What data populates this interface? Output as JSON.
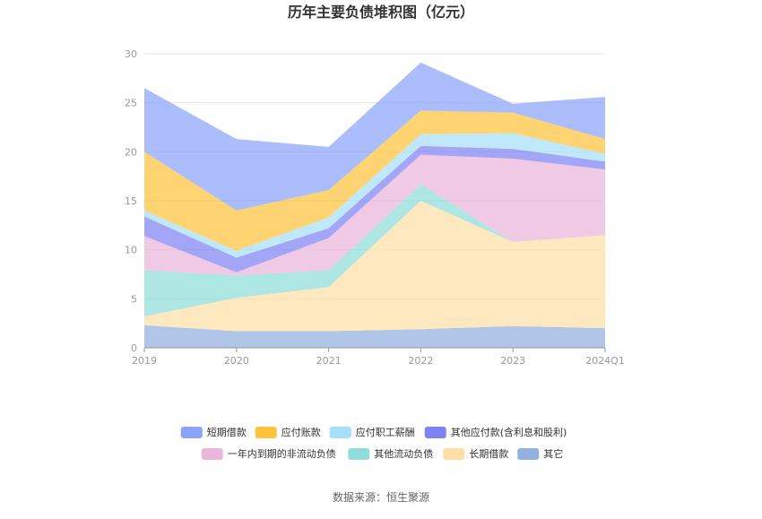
{
  "chart_data": {
    "type": "area",
    "stacked": true,
    "title": "历年主要负债堆积图（亿元）",
    "categories": [
      "2019",
      "2020",
      "2021",
      "2022",
      "2023",
      "2024Q1"
    ],
    "ylim": [
      0,
      30
    ],
    "yticks": [
      "0",
      "5",
      "10",
      "15",
      "20",
      "25",
      "30"
    ],
    "grid": true,
    "legend_position": "bottom",
    "series": [
      {
        "name": "短期借款",
        "color": "#8aa4f8",
        "values": [
          6.5,
          7.3,
          4.4,
          4.9,
          0.9,
          4.3
        ]
      },
      {
        "name": "应付账款",
        "color": "#fdc43b",
        "values": [
          6.0,
          4.1,
          2.8,
          2.4,
          2.1,
          1.5
        ]
      },
      {
        "name": "应付职工薪酬",
        "color": "#a6dffa",
        "values": [
          0.6,
          0.7,
          1.1,
          1.2,
          1.6,
          0.8
        ]
      },
      {
        "name": "其他应付款(含利息和股利)",
        "color": "#7f82f2",
        "values": [
          2.0,
          1.5,
          1.0,
          0.9,
          1.0,
          0.8
        ]
      },
      {
        "name": "一年内到期的非流动负债",
        "color": "#eab6da",
        "values": [
          3.5,
          0.3,
          3.3,
          3.0,
          8.5,
          6.7
        ]
      },
      {
        "name": "其他流动负债",
        "color": "#8fdcd9",
        "values": [
          4.7,
          2.3,
          1.7,
          1.7,
          0.0,
          0.0
        ]
      },
      {
        "name": "长期借款",
        "color": "#fddfa6",
        "values": [
          0.9,
          3.4,
          4.5,
          13.1,
          8.6,
          9.5
        ]
      },
      {
        "name": "其它",
        "color": "#92b0e0",
        "values": [
          2.3,
          1.7,
          1.7,
          1.9,
          2.2,
          2.0
        ]
      }
    ]
  },
  "source_text": "数据来源：恒生聚源"
}
